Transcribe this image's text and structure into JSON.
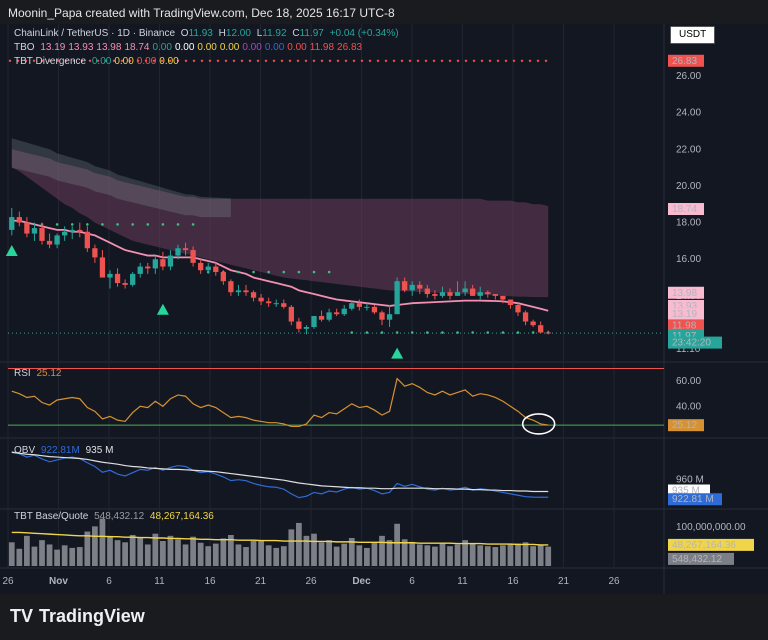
{
  "header": {
    "caption": "Moonin_Papa created with TradingView.com, Dec 18, 2025 16:17 UTC-8"
  },
  "colors": {
    "background": "#131722",
    "up": "#26a69a",
    "down": "#ef5350",
    "ema_line": "#f48fb1",
    "cloud": "#6b3e5c",
    "rsi_line": "#d69232",
    "obv_line": "#e0e0e0",
    "obv_ma": "#2f6bd6",
    "base_line": "#f0d44a",
    "hist": "#7d7f86",
    "signal": "#4caf8e",
    "dots": "#3fbf7f",
    "red_dots": "#ef5350"
  },
  "legend": {
    "symbol": "ChainLink / TetherUS · 1D · Binance",
    "o_label": "O",
    "o_val": "11.93",
    "h_label": "H",
    "h_val": "12.00",
    "l_label": "L",
    "l_val": "11.92",
    "c_label": "C",
    "c_val": "11.97",
    "change": "+0.04 (+0.34%)",
    "tbo_label": "TBO",
    "tbo_vals": [
      "13.19",
      "13.93",
      "13.98",
      "18.74",
      "0.00",
      "0.00",
      "0.00",
      "0.00",
      "0.00",
      "0.00",
      "0.00",
      "11.98",
      "26.83"
    ],
    "tbt_label": "TBT Divergence",
    "tbt_vals": [
      "0.00",
      "0.00",
      "0.00",
      "0.00"
    ],
    "rsi_label": "RSI",
    "rsi_val": "25.12",
    "obv_label": "OBV",
    "obv_val1": "922.81M",
    "obv_val2": "935 M",
    "base_label": "TBT Base/Quote",
    "base_val1": "548,432.12",
    "base_val2": "48,267,164.36"
  },
  "price_axis": {
    "currency": "USDT",
    "ticks": [
      "26.00",
      "24.00",
      "22.00",
      "20.00",
      "18.00",
      "16.00",
      "14.00",
      "12.00",
      "11.10"
    ]
  },
  "price_tags": [
    {
      "text": "26.83",
      "price": 26.83,
      "bg": "#ef5350",
      "fg": "#ffffff"
    },
    {
      "text": "18.74",
      "price": 18.74,
      "bg": "#f8bbd0",
      "fg": "#000000"
    },
    {
      "text": "13.98",
      "price": 14.17,
      "bg": "#f8bbd0",
      "fg": "#000000"
    },
    {
      "text": "13.93",
      "price": 13.45,
      "bg": "#f8bbd0",
      "fg": "#000000"
    },
    {
      "text": "13.19",
      "price": 13.0,
      "bg": "#f8bbd0",
      "fg": "#000000"
    },
    {
      "text": "11.98",
      "price": 12.39,
      "bg": "#ef5350",
      "fg": "#ffffff"
    },
    {
      "text": "11.97",
      "price": 11.82,
      "bg": "#26a69a",
      "fg": "#ffffff"
    },
    {
      "text": "23:42:20",
      "price": 11.45,
      "bg": "#26a69a",
      "fg": "#ffffff"
    }
  ],
  "rsi_axis": {
    "ticks": [
      "60.00",
      "40.00"
    ],
    "tag": "25.12"
  },
  "obv_axis": {
    "ticks": [
      "960 M"
    ],
    "tags": [
      "935 M",
      "922.81 M"
    ]
  },
  "base_axis": {
    "ticks": [
      "100,000,000.00"
    ],
    "tags": [
      "48,267,164.36",
      "548,432.12"
    ]
  },
  "x_axis": {
    "labels": [
      "26",
      "Nov",
      "6",
      "11",
      "16",
      "21",
      "26",
      "Dec",
      "6",
      "11",
      "16",
      "21",
      "26"
    ]
  },
  "footer": {
    "brand": "TradingView",
    "mark": "TV"
  },
  "chart_data": {
    "type": "candlestick",
    "title": "ChainLink / TetherUS · 1D · Binance",
    "x_start": "2025-10-26",
    "open": [
      17.6,
      18.3,
      18.0,
      17.4,
      17.7,
      17.0,
      16.8,
      17.3,
      17.5,
      17.6,
      17.5,
      16.6,
      16.1,
      15.0,
      15.2,
      14.7,
      14.6,
      15.2,
      15.6,
      15.5,
      16.0,
      15.6,
      16.2,
      16.6,
      16.5,
      15.8,
      15.4,
      15.6,
      15.3,
      14.8,
      14.2,
      14.3,
      14.2,
      13.9,
      13.7,
      13.6,
      13.6,
      13.4,
      12.6,
      12.2,
      12.3,
      12.9,
      12.7,
      13.1,
      13.0,
      13.3,
      13.6,
      13.4,
      13.4,
      13.1,
      12.7,
      13.0,
      14.8,
      14.3,
      14.6,
      14.4,
      14.1,
      14.0,
      14.2,
      14.0,
      14.2,
      14.4,
      14.0,
      14.2,
      14.1,
      14.0,
      13.8,
      13.5,
      13.1,
      12.6,
      12.4,
      12.0
    ],
    "high": [
      18.8,
      18.6,
      18.3,
      18.0,
      18.0,
      17.4,
      17.4,
      17.8,
      17.8,
      18.0,
      17.8,
      16.8,
      16.5,
      15.4,
      15.5,
      14.9,
      15.3,
      15.8,
      15.8,
      16.2,
      16.4,
      16.5,
      16.8,
      16.9,
      16.7,
      16.0,
      15.8,
      15.8,
      15.4,
      14.9,
      14.6,
      14.6,
      14.3,
      14.1,
      13.9,
      13.8,
      13.8,
      13.5,
      12.8,
      12.4,
      12.9,
      13.2,
      13.3,
      13.3,
      13.5,
      13.7,
      13.8,
      13.6,
      13.5,
      13.2,
      13.5,
      15.0,
      15.0,
      14.8,
      14.8,
      14.6,
      14.3,
      14.5,
      14.4,
      14.8,
      14.8,
      14.6,
      14.5,
      14.3,
      14.1,
      14.0,
      13.8,
      13.6,
      13.2,
      12.7,
      12.6,
      12.1
    ],
    "low": [
      17.3,
      17.8,
      17.2,
      17.0,
      16.8,
      16.6,
      16.6,
      17.0,
      17.1,
      17.2,
      16.4,
      15.8,
      15.0,
      14.4,
      14.5,
      14.4,
      14.5,
      15.0,
      15.2,
      15.2,
      15.4,
      15.4,
      16.0,
      16.2,
      15.6,
      15.2,
      15.2,
      15.1,
      14.6,
      14.0,
      14.0,
      14.0,
      13.7,
      13.5,
      13.4,
      13.4,
      13.3,
      12.4,
      12.0,
      11.9,
      12.2,
      12.6,
      12.6,
      12.9,
      12.9,
      13.2,
      13.2,
      13.2,
      13.0,
      12.4,
      12.3,
      13.0,
      14.2,
      14.0,
      14.1,
      13.9,
      13.8,
      13.9,
      13.8,
      14.0,
      14.0,
      14.0,
      13.8,
      13.9,
      13.8,
      13.6,
      13.3,
      12.9,
      12.4,
      12.3,
      12.0,
      11.9
    ],
    "close": [
      18.3,
      18.0,
      17.4,
      17.7,
      17.0,
      16.8,
      17.3,
      17.5,
      17.6,
      17.5,
      16.6,
      16.1,
      15.0,
      15.2,
      14.7,
      14.6,
      15.2,
      15.6,
      15.5,
      16.0,
      15.6,
      16.2,
      16.6,
      16.5,
      15.8,
      15.4,
      15.6,
      15.3,
      14.8,
      14.2,
      14.3,
      14.2,
      13.9,
      13.7,
      13.6,
      13.6,
      13.4,
      12.6,
      12.2,
      12.3,
      12.9,
      12.7,
      13.1,
      13.0,
      13.3,
      13.6,
      13.4,
      13.4,
      13.1,
      12.7,
      13.0,
      14.8,
      14.3,
      14.6,
      14.4,
      14.1,
      14.0,
      14.2,
      14.0,
      14.2,
      14.4,
      14.0,
      14.2,
      14.1,
      14.0,
      13.8,
      13.5,
      13.1,
      12.6,
      12.4,
      12.0,
      11.97
    ],
    "rsi": [
      52,
      50,
      47,
      48,
      43,
      41,
      45,
      46,
      47,
      46,
      39,
      36,
      30,
      32,
      29,
      28,
      35,
      40,
      39,
      44,
      40,
      46,
      49,
      48,
      42,
      39,
      41,
      39,
      35,
      31,
      32,
      31,
      29,
      28,
      27,
      27,
      26,
      24,
      24,
      26,
      33,
      31,
      35,
      34,
      38,
      42,
      39,
      40,
      37,
      33,
      36,
      62,
      56,
      58,
      55,
      51,
      49,
      52,
      49,
      51,
      53,
      48,
      50,
      49,
      47,
      44,
      40,
      36,
      31,
      29,
      26,
      25.1
    ],
    "obv": [
      1020,
      1015,
      1008,
      1012,
      1004,
      998,
      1002,
      1006,
      1008,
      1005,
      996,
      988,
      976,
      980,
      972,
      968,
      975,
      982,
      980,
      986,
      980,
      986,
      990,
      988,
      980,
      975,
      977,
      972,
      966,
      958,
      960,
      958,
      952,
      948,
      945,
      944,
      940,
      930,
      922,
      925,
      933,
      930,
      936,
      934,
      940,
      944,
      940,
      942,
      937,
      930,
      933,
      952,
      946,
      950,
      945,
      940,
      938,
      942,
      938,
      940,
      944,
      938,
      941,
      939,
      936,
      933,
      930,
      927,
      924,
      923,
      922.81,
      922.81
    ],
    "obv_ma": [
      1018,
      1016,
      1014,
      1013,
      1011,
      1009,
      1008,
      1007,
      1006,
      1005,
      1003,
      1000,
      997,
      995,
      993,
      990,
      988,
      987,
      985,
      984,
      983,
      982,
      982,
      981,
      980,
      979,
      978,
      977,
      975,
      973,
      971,
      969,
      967,
      965,
      963,
      961,
      959,
      956,
      953,
      951,
      949,
      947,
      946,
      945,
      944,
      943,
      943,
      942,
      942,
      941,
      941,
      942,
      942,
      942,
      942,
      942,
      941,
      941,
      941,
      940,
      940,
      939,
      939,
      938,
      938,
      937,
      937,
      936,
      936,
      935,
      935,
      935
    ],
    "volume": [
      55,
      40,
      70,
      45,
      60,
      50,
      38,
      48,
      42,
      44,
      80,
      92,
      110,
      70,
      60,
      55,
      72,
      65,
      50,
      75,
      58,
      70,
      62,
      50,
      68,
      54,
      46,
      52,
      64,
      72,
      50,
      44,
      58,
      60,
      48,
      42,
      46,
      85,
      100,
      70,
      75,
      55,
      60,
      45,
      52,
      65,
      48,
      42,
      55,
      70,
      60,
      98,
      62,
      56,
      50,
      48,
      45,
      52,
      46,
      50,
      60,
      52,
      48,
      46,
      44,
      48,
      50,
      52,
      55,
      46,
      48,
      45
    ],
    "base_ma": [
      78,
      78,
      77,
      76,
      75,
      74,
      73,
      72,
      71,
      70,
      70,
      69,
      69,
      68,
      68,
      67,
      67,
      66,
      66,
      65,
      65,
      64,
      64,
      63,
      63,
      62,
      62,
      61,
      61,
      61,
      60,
      60,
      60,
      59,
      59,
      59,
      58,
      58,
      58,
      58,
      57,
      57,
      57,
      56,
      56,
      56,
      55,
      55,
      55,
      55,
      54,
      54,
      54,
      54,
      53,
      53,
      53,
      53,
      53,
      52,
      52,
      52,
      52,
      51,
      51,
      51,
      51,
      50,
      50,
      50,
      49,
      49
    ],
    "cloud_upper": [
      22.0,
      21.9,
      21.8,
      21.7,
      21.6,
      21.5,
      21.3,
      21.2,
      21.1,
      21.0,
      20.9,
      20.7,
      20.6,
      20.5,
      20.3,
      20.2,
      20.1,
      20.0,
      19.9,
      19.8,
      19.7,
      19.6,
      19.5,
      19.4,
      19.4,
      19.3,
      19.3,
      19.3,
      19.3,
      19.3,
      19.3,
      19.3,
      19.3,
      19.3,
      19.3,
      19.3,
      19.3,
      19.3,
      19.3,
      19.3,
      19.3,
      19.3,
      19.3,
      19.3,
      19.3,
      19.3,
      19.3,
      19.3,
      19.3,
      19.3,
      19.3,
      19.3,
      19.3,
      19.3,
      19.3,
      19.3,
      19.3,
      19.3,
      19.3,
      19.3,
      19.3,
      19.3,
      19.3,
      19.2,
      19.2,
      19.2,
      19.2,
      19.1,
      19.1,
      19.0,
      19.0,
      18.9
    ],
    "cloud_lower": [
      21.0,
      20.8,
      20.5,
      20.2,
      19.9,
      19.6,
      19.3,
      19.0,
      18.8,
      18.5,
      18.3,
      18.0,
      17.8,
      17.6,
      17.4,
      17.2,
      17.0,
      16.9,
      16.8,
      16.7,
      16.6,
      16.5,
      16.4,
      16.3,
      16.2,
      16.1,
      16.0,
      15.9,
      15.8,
      15.7,
      15.6,
      15.5,
      15.4,
      15.3,
      15.2,
      15.1,
      15.0,
      14.95,
      14.9,
      14.85,
      14.8,
      14.75,
      14.7,
      14.65,
      14.6,
      14.55,
      14.5,
      14.45,
      14.4,
      14.35,
      14.3,
      14.28,
      14.26,
      14.24,
      14.22,
      14.2,
      14.18,
      14.16,
      14.14,
      14.12,
      14.1,
      14.08,
      14.06,
      14.04,
      14.02,
      14.0,
      13.98,
      13.96,
      13.95,
      13.94,
      13.93,
      13.93
    ],
    "ema": [
      18.1,
      18.1,
      18.0,
      17.9,
      17.8,
      17.7,
      17.6,
      17.6,
      17.5,
      17.5,
      17.4,
      17.3,
      17.1,
      16.9,
      16.7,
      16.5,
      16.4,
      16.3,
      16.2,
      16.2,
      16.1,
      16.1,
      16.1,
      16.1,
      16.1,
      16.0,
      15.9,
      15.8,
      15.6,
      15.4,
      15.3,
      15.2,
      15.0,
      14.9,
      14.8,
      14.7,
      14.6,
      14.5,
      14.3,
      14.2,
      14.1,
      14.0,
      13.9,
      13.8,
      13.75,
      13.7,
      13.65,
      13.6,
      13.55,
      13.5,
      13.45,
      13.5,
      13.55,
      13.6,
      13.62,
      13.64,
      13.66,
      13.68,
      13.7,
      13.72,
      13.74,
      13.74,
      13.74,
      13.73,
      13.72,
      13.7,
      13.65,
      13.6,
      13.5,
      13.4,
      13.3,
      13.19
    ],
    "price_range": [
      10.5,
      27.2
    ],
    "rsi_range": [
      18,
      72
    ],
    "volume_max": 130
  }
}
